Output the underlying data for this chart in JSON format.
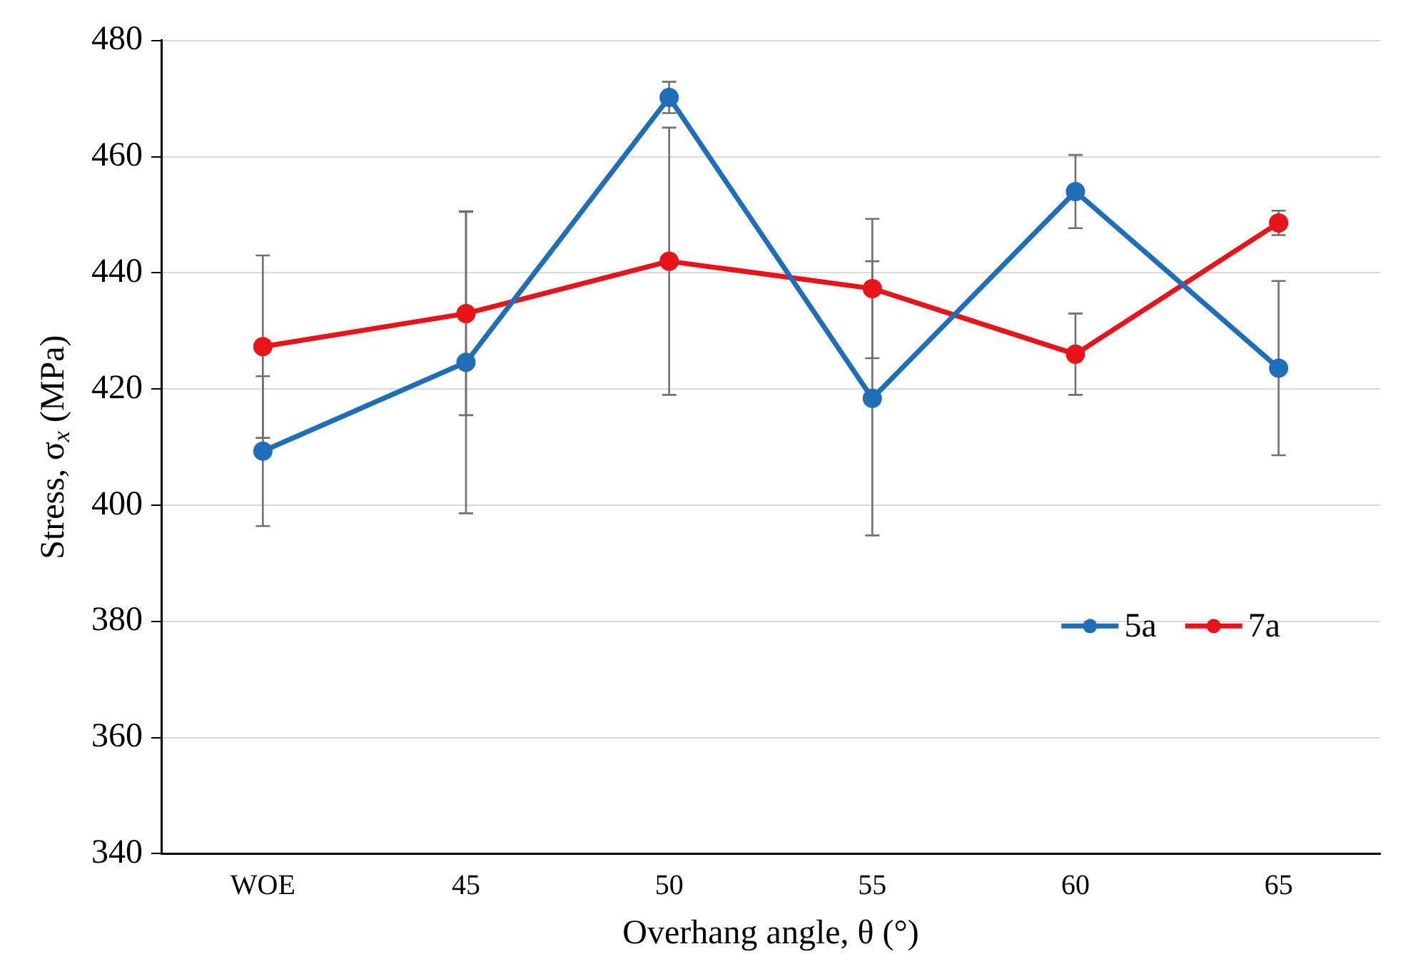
{
  "chart_data": {
    "type": "line",
    "xlabel": "Overhang angle, θ (°)",
    "ylabel": "Stress, σ$_{x}$ (MPa)",
    "categories": [
      "WOE",
      "45",
      "50",
      "55",
      "60",
      "65"
    ],
    "series": [
      {
        "name": "5a",
        "color": "#1f6fb8",
        "values": [
          409.3,
          424.6,
          470.2,
          418.4,
          454,
          423.6
        ],
        "errors": [
          12.9,
          26,
          2.7,
          23.6,
          6.3,
          15
        ]
      },
      {
        "name": "7a",
        "color": "#e8141a",
        "values": [
          427.3,
          433,
          442,
          437.3,
          426,
          448.6
        ],
        "errors": [
          15.7,
          17.5,
          23,
          12,
          7,
          2.1
        ]
      }
    ],
    "ylim": [
      340,
      480
    ],
    "yticks": [
      340,
      360,
      380,
      400,
      420,
      440,
      460,
      480
    ],
    "grid": "y",
    "legend": "right",
    "marker": "circle",
    "line_style": "solid"
  }
}
